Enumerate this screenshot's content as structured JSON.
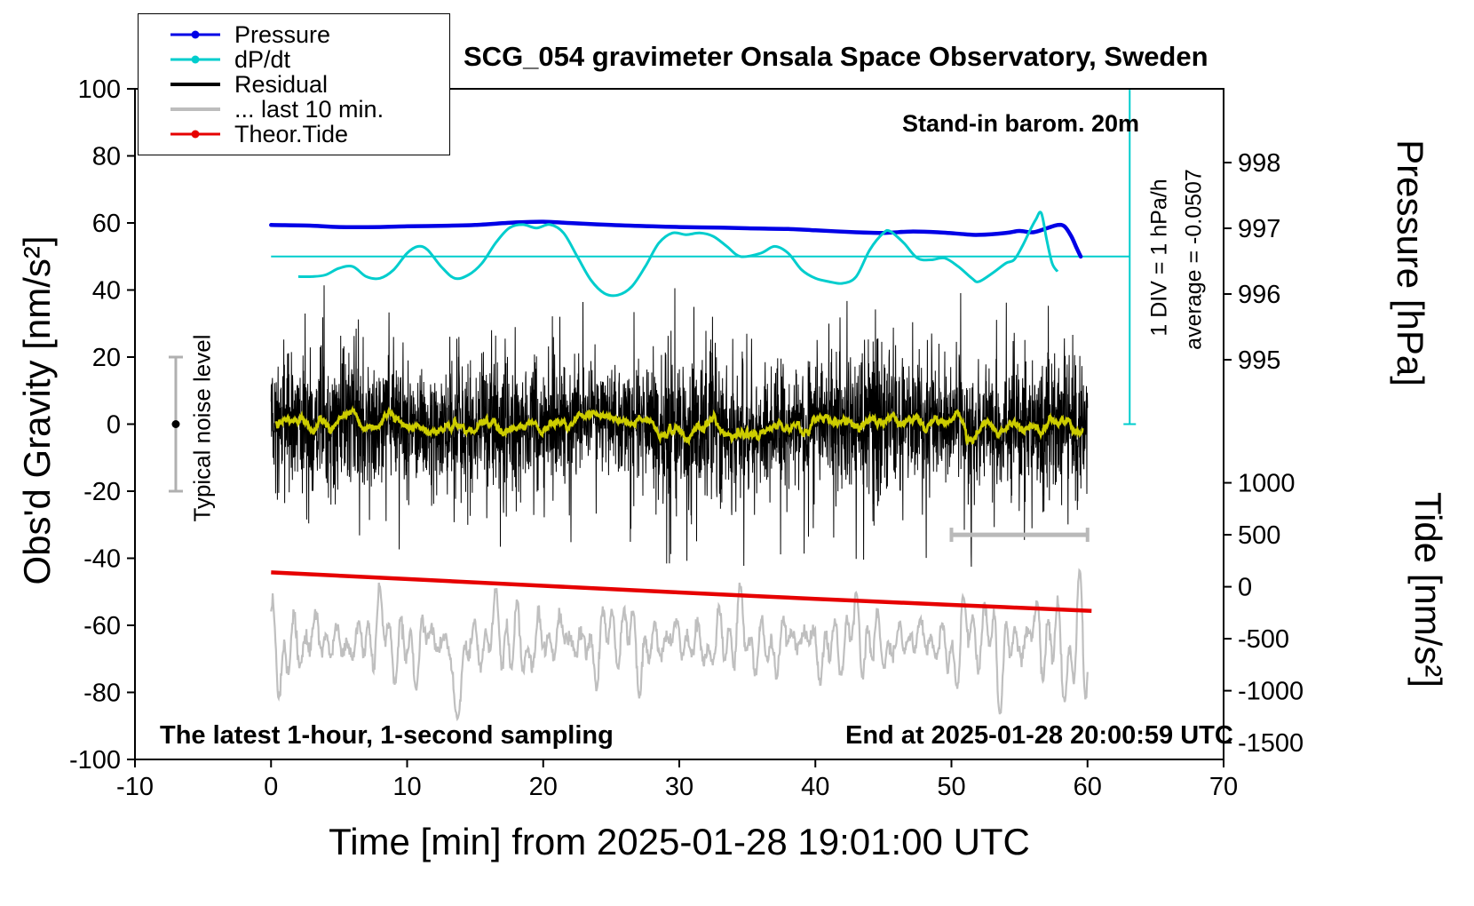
{
  "title": "SCG_054 gravimeter Onsala Space Observatory, Sweden",
  "annotations": {
    "barometer": "Stand-in barom. 20m",
    "div_scale": "1 DIV = 1 hPa/h",
    "average": "average = -0.0507",
    "noise_level": "Typical noise level",
    "sampling": "The latest 1-hour, 1-second sampling",
    "end_time": "End at 2025-01-28 20:00:59 UTC"
  },
  "legend": {
    "items": [
      {
        "label": "Pressure",
        "color": "#0000e6",
        "marker": "line-dot"
      },
      {
        "label": "dP/dt",
        "color": "#00cdcd",
        "marker": "line-dot"
      },
      {
        "label": "Residual",
        "color": "#000000",
        "marker": "line"
      },
      {
        "label": "... last 10 min.",
        "color": "#bdbdbd",
        "marker": "line"
      },
      {
        "label": "Theor.Tide",
        "color": "#e60000",
        "marker": "line-dot"
      }
    ]
  },
  "axes": {
    "x": {
      "label": "Time [min] from 2025-01-28 19:01:00 UTC",
      "min": -10,
      "max": 70,
      "ticks": [
        -10,
        0,
        10,
        20,
        30,
        40,
        50,
        60,
        70
      ]
    },
    "y_left": {
      "label": "Obs'd Gravity [nm/s²]",
      "min": -100,
      "max": 100,
      "ticks": [
        -100,
        -80,
        -60,
        -40,
        -20,
        0,
        20,
        40,
        60,
        80,
        100
      ]
    },
    "y_pressure": {
      "label": "Pressure [hPa]",
      "ticks": [
        {
          "value": "998",
          "g": 78.0
        },
        {
          "value": "997",
          "g": 58.4
        },
        {
          "value": "996",
          "g": 38.8
        },
        {
          "value": "995",
          "g": 19.2
        }
      ]
    },
    "y_tide": {
      "label": "Tide [nm/s²]",
      "ticks": [
        {
          "value": "1000",
          "g": -17.5
        },
        {
          "value": "500",
          "g": -33
        },
        {
          "value": "0",
          "g": -48.5
        },
        {
          "value": "-500",
          "g": -64
        },
        {
          "value": "-1000",
          "g": -79.5
        },
        {
          "value": "-1500",
          "g": -95
        }
      ]
    }
  },
  "chart_data": {
    "type": "line",
    "title": "SCG_054 gravimeter Onsala Space Observatory, Sweden",
    "xlabel": "Time [min] from 2025-01-28 19:01:00 UTC",
    "ylabel": "Obs'd Gravity [nm/s²]",
    "xlim": [
      -10,
      70
    ],
    "ylim": [
      -100,
      100
    ],
    "seed": 20250128,
    "pressure_to_gravity": {
      "anchor_hpa": 997,
      "anchor_g": 58.4,
      "g_per_hpa": 19.6
    },
    "series": {
      "pressure": {
        "name": "Pressure",
        "color": "#0000e6",
        "units": "hPa",
        "points": [
          [
            0,
            997.05
          ],
          [
            3,
            997.04
          ],
          [
            5,
            997.02
          ],
          [
            8,
            997.02
          ],
          [
            10,
            997.03
          ],
          [
            13,
            997.04
          ],
          [
            15,
            997.05
          ],
          [
            18,
            997.09
          ],
          [
            20,
            997.1
          ],
          [
            22,
            997.08
          ],
          [
            25,
            997.05
          ],
          [
            28,
            997.03
          ],
          [
            30,
            997.02
          ],
          [
            33,
            997.01
          ],
          [
            35,
            997.0
          ],
          [
            38,
            996.99
          ],
          [
            40,
            996.97
          ],
          [
            43,
            996.94
          ],
          [
            45,
            996.93
          ],
          [
            47,
            996.95
          ],
          [
            49,
            996.94
          ],
          [
            51,
            996.91
          ],
          [
            52,
            996.9
          ],
          [
            54,
            996.93
          ],
          [
            55,
            996.96
          ],
          [
            56,
            996.94
          ],
          [
            57,
            997.0
          ],
          [
            57.8,
            997.05
          ],
          [
            58.3,
            997.03
          ],
          [
            58.8,
            996.88
          ],
          [
            59.2,
            996.7
          ],
          [
            59.5,
            996.57
          ]
        ]
      },
      "dpdt": {
        "name": "dP/dt",
        "color": "#00cdcd",
        "units": "gravity_axis",
        "reference_g": 50,
        "points": [
          [
            2,
            44
          ],
          [
            3,
            44
          ],
          [
            4,
            44.5
          ],
          [
            5,
            46.5
          ],
          [
            6,
            47
          ],
          [
            7,
            44
          ],
          [
            8,
            43.5
          ],
          [
            9,
            46
          ],
          [
            10,
            51
          ],
          [
            10.8,
            53
          ],
          [
            11.5,
            52
          ],
          [
            12.5,
            47
          ],
          [
            13.5,
            43.5
          ],
          [
            14.5,
            44.5
          ],
          [
            15.5,
            48
          ],
          [
            16.5,
            54
          ],
          [
            17.5,
            58.5
          ],
          [
            18.5,
            59.5
          ],
          [
            19.5,
            58.5
          ],
          [
            20.5,
            59.5
          ],
          [
            21.5,
            57
          ],
          [
            22.5,
            50
          ],
          [
            23.5,
            43
          ],
          [
            24.5,
            39
          ],
          [
            25.5,
            38.5
          ],
          [
            26.5,
            41
          ],
          [
            27.5,
            47
          ],
          [
            28.5,
            54
          ],
          [
            29.5,
            57
          ],
          [
            30.5,
            56.5
          ],
          [
            31.5,
            57
          ],
          [
            32.5,
            56
          ],
          [
            33.5,
            53
          ],
          [
            34.5,
            50
          ],
          [
            36,
            51
          ],
          [
            37,
            53
          ],
          [
            38,
            51
          ],
          [
            39,
            46
          ],
          [
            40,
            43.5
          ],
          [
            41,
            42.5
          ],
          [
            42,
            42
          ],
          [
            43,
            44
          ],
          [
            44,
            52
          ],
          [
            45,
            57
          ],
          [
            45.5,
            57.5
          ],
          [
            46.5,
            54
          ],
          [
            47.5,
            49.5
          ],
          [
            48.5,
            49
          ],
          [
            49.5,
            49.5
          ],
          [
            50.5,
            47
          ],
          [
            51.5,
            43.5
          ],
          [
            52,
            42.5
          ],
          [
            53,
            45
          ],
          [
            54,
            48
          ],
          [
            54.6,
            49
          ],
          [
            55.2,
            53
          ],
          [
            55.8,
            58
          ],
          [
            56.2,
            61
          ],
          [
            56.6,
            63
          ],
          [
            57,
            55
          ],
          [
            57.4,
            48
          ],
          [
            57.8,
            45.5
          ]
        ]
      },
      "tide": {
        "name": "Theor.Tide",
        "color": "#e60000",
        "units": "gravity_axis",
        "points": [
          [
            0,
            -44.2
          ],
          [
            10,
            -46.2
          ],
          [
            20,
            -48.2
          ],
          [
            30,
            -50.2
          ],
          [
            40,
            -52.1
          ],
          [
            50,
            -53.9
          ],
          [
            60.3,
            -55.7
          ]
        ]
      },
      "residual": {
        "name": "Residual",
        "color": "#000000",
        "t_start": 0,
        "t_end": 60,
        "n": 3600,
        "std": 8.5,
        "spike_prob": 0.15,
        "spike_std": 15,
        "clamp": 41
      },
      "residual_mean": {
        "name": "Residual smoothed",
        "color": "#cccc00",
        "window": 45
      },
      "last10": {
        "name": "... last 10 min.",
        "color": "#bfbfbf",
        "t_start": 0,
        "t_end": 60,
        "n": 1500,
        "center": -65,
        "base_amp": 9,
        "amp_boost_after": 53,
        "amp_boost": 1.9,
        "dip_t": 13.6,
        "dip_depth": 26,
        "soft_span": 30
      }
    },
    "reference_lines": {
      "dpdt_zero": {
        "g": 50,
        "t_start": 0,
        "t_end": 63.1,
        "color": "#00cdcd"
      },
      "div_bar": {
        "t": 63.1,
        "g_top": 100,
        "g_bottom": 0,
        "color": "#00cdcd"
      }
    },
    "noise_errorbar": {
      "t": -7,
      "g_low": -20,
      "g_high": 20,
      "dot_g": 0,
      "color": "#b0b0b0"
    },
    "scale_bar": {
      "t_start": 50,
      "t_end": 60,
      "g": -33,
      "color": "#b9b9b9"
    }
  }
}
